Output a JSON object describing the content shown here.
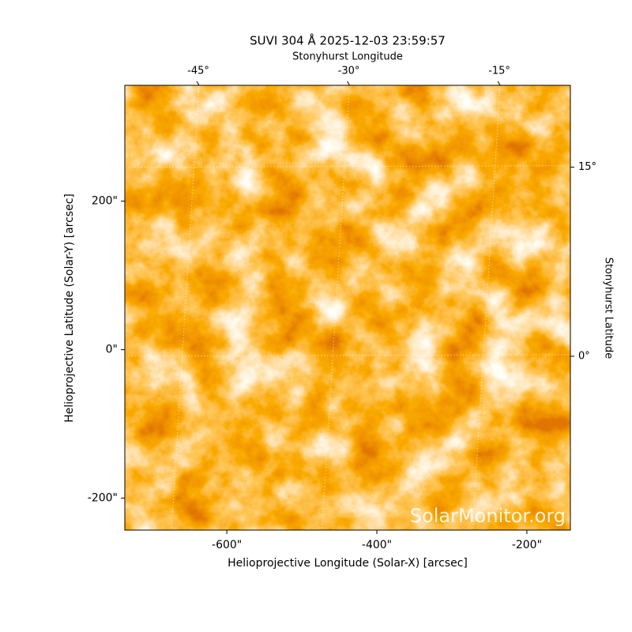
{
  "chart_data": {
    "type": "image",
    "title": "SUVI 304 Å 2025-12-03 23:59:57",
    "xlabel": "Helioprojective Longitude (Solar-X) [arcsec]",
    "ylabel": "Helioprojective Latitude (Solar-Y) [arcsec]",
    "x2label": "Stonyhurst Longitude",
    "y2label": "Stonyhurst Latitude",
    "watermark": "SolarMonitor.org",
    "xlim": [
      -736,
      -142
    ],
    "ylim": [
      -243,
      356
    ],
    "xticks": [
      {
        "value": -600,
        "label": "-600\""
      },
      {
        "value": -400,
        "label": "-400\""
      },
      {
        "value": -200,
        "label": "-200\""
      }
    ],
    "yticks": [
      {
        "value": -200,
        "label": "-200\""
      },
      {
        "value": 0,
        "label": "0\""
      },
      {
        "value": 200,
        "label": "200\""
      }
    ],
    "x2lim": [
      -52.4,
      -8.0
    ],
    "x2ticks": [
      {
        "value": -45,
        "label": "-45°"
      },
      {
        "value": -30,
        "label": "-30°"
      },
      {
        "value": -15,
        "label": "-15°"
      }
    ],
    "y2lim": [
      -13.8,
      21.5
    ],
    "y2ticks": [
      {
        "value": 0,
        "label": "0°"
      },
      {
        "value": 15,
        "label": "15°"
      }
    ],
    "grid": true
  }
}
